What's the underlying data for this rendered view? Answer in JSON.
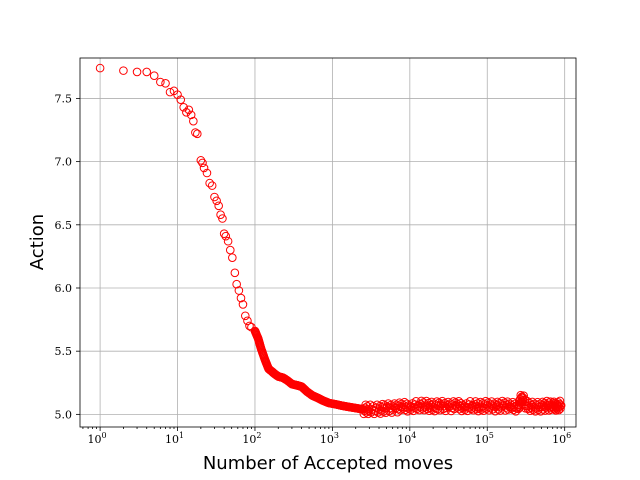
{
  "chart_data": {
    "type": "scatter",
    "xlabel": "Number of Accepted moves",
    "ylabel": "Action",
    "xscale": "log",
    "xlim": [
      0.55,
      1400000
    ],
    "ylim": [
      4.9,
      7.82
    ],
    "grid": true,
    "marker": "open-circle",
    "marker_color": "#ff0000",
    "x_ticks": [
      {
        "value": 1,
        "base": "10",
        "exp": "0"
      },
      {
        "value": 10,
        "base": "10",
        "exp": "1"
      },
      {
        "value": 100,
        "base": "10",
        "exp": "2"
      },
      {
        "value": 1000,
        "base": "10",
        "exp": "3"
      },
      {
        "value": 10000,
        "base": "10",
        "exp": "4"
      },
      {
        "value": 100000,
        "base": "10",
        "exp": "5"
      },
      {
        "value": 1000000,
        "base": "10",
        "exp": "6"
      }
    ],
    "y_ticks": [
      {
        "value": 5.0,
        "label": "5.0"
      },
      {
        "value": 5.5,
        "label": "5.5"
      },
      {
        "value": 6.0,
        "label": "6.0"
      },
      {
        "value": 6.5,
        "label": "6.5"
      },
      {
        "value": 7.0,
        "label": "7.0"
      },
      {
        "value": 7.5,
        "label": "7.5"
      }
    ],
    "series": [
      {
        "x": [
          1,
          2,
          3,
          4,
          5,
          6,
          7,
          8,
          9,
          10,
          11,
          12,
          13,
          14,
          15,
          16,
          17,
          18,
          20,
          21,
          22,
          24,
          26,
          28,
          30,
          32,
          34,
          36,
          38,
          40,
          42,
          45,
          48,
          51,
          55,
          58,
          62,
          66,
          70,
          75,
          80,
          85,
          90,
          100,
          110,
          120,
          135,
          150,
          165,
          180,
          200,
          230,
          260,
          300,
          350,
          400,
          470,
          550,
          650,
          750,
          900,
          1100,
          1300,
          1600,
          2000,
          2500,
          3000,
          4000,
          5000,
          6500,
          8000,
          10000,
          13000,
          16000,
          20000,
          25000,
          32000,
          40000,
          50000,
          65000,
          80000,
          100000,
          130000,
          160000,
          200000,
          250000,
          280000,
          320000,
          400000,
          500000,
          600000,
          700000,
          800000,
          900000
        ],
        "y": [
          7.74,
          7.72,
          7.71,
          7.71,
          7.68,
          7.63,
          7.62,
          7.55,
          7.56,
          7.53,
          7.49,
          7.43,
          7.39,
          7.41,
          7.37,
          7.32,
          7.23,
          7.22,
          7.01,
          6.99,
          6.95,
          6.91,
          6.83,
          6.81,
          6.72,
          6.69,
          6.65,
          6.58,
          6.55,
          6.43,
          6.41,
          6.37,
          6.3,
          6.24,
          6.12,
          6.03,
          5.98,
          5.92,
          5.87,
          5.78,
          5.74,
          5.7,
          5.69,
          5.66,
          5.6,
          5.52,
          5.43,
          5.36,
          5.34,
          5.32,
          5.3,
          5.29,
          5.27,
          5.24,
          5.23,
          5.22,
          5.18,
          5.15,
          5.13,
          5.11,
          5.09,
          5.08,
          5.07,
          5.06,
          5.05,
          5.04,
          5.04,
          5.04,
          5.05,
          5.05,
          5.06,
          5.06,
          5.07,
          5.07,
          5.06,
          5.07,
          5.06,
          5.07,
          5.06,
          5.07,
          5.06,
          5.07,
          5.06,
          5.07,
          5.06,
          5.06,
          5.14,
          5.07,
          5.06,
          5.06,
          5.07,
          5.06,
          5.07,
          5.07
        ]
      }
    ]
  }
}
